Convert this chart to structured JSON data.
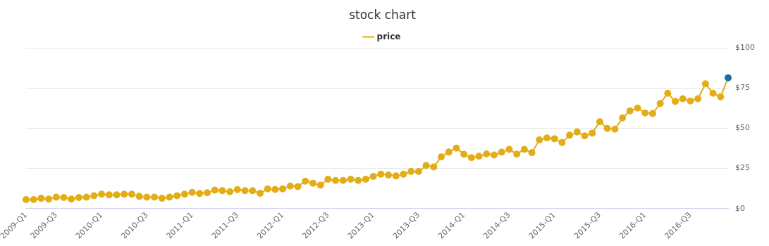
{
  "chart_data": {
    "type": "line",
    "title": "stock chart",
    "categories": [
      "2009-Q1",
      null,
      null,
      null,
      "2009-Q3",
      null,
      null,
      null,
      null,
      null,
      "2010-Q1",
      null,
      null,
      null,
      null,
      null,
      "2010-Q3",
      null,
      null,
      null,
      null,
      null,
      "2011-Q1",
      null,
      null,
      null,
      null,
      null,
      "2011-Q3",
      null,
      null,
      null,
      null,
      null,
      "2012-Q1",
      null,
      null,
      null,
      null,
      null,
      "2012-Q3",
      null,
      null,
      null,
      null,
      null,
      "2013-Q1",
      null,
      null,
      null,
      null,
      null,
      "2013-Q3",
      null,
      null,
      null,
      null,
      null,
      "2014-Q1",
      null,
      null,
      null,
      null,
      null,
      "2014-Q3",
      null,
      null,
      null,
      null,
      null,
      "2015-Q1",
      null,
      null,
      null,
      null,
      null,
      "2015-Q3",
      null,
      null,
      null,
      null,
      null,
      "2016-Q1",
      null,
      null,
      null,
      null,
      null,
      "2016-Q3",
      null,
      null,
      null,
      null,
      null
    ],
    "series": [
      {
        "name": "price",
        "color": "#e3ad17",
        "colors": [
          "#e3ad17",
          "#e3ad17",
          "#e3ad17",
          "#e3ad17",
          "#e3ad17",
          "#e3ad17",
          "#e3ad17",
          "#e3ad17",
          "#e3ad17",
          "#e3ad17",
          "#e3ad17",
          "#e3ad17",
          "#e3ad17",
          "#e3ad17",
          "#e3ad17",
          "#e3ad17",
          "#e3ad17",
          "#e3ad17",
          "#e3ad17",
          "#e3ad17",
          "#e3ad17",
          "#e3ad17",
          "#e3ad17",
          "#e3ad17",
          "#e3ad17",
          "#e3ad17",
          "#e3ad17",
          "#e3ad17",
          "#e3ad17",
          "#e3ad17",
          "#e3ad17",
          "#e3ad17",
          "#e3ad17",
          "#e3ad17",
          "#e3ad17",
          "#e3ad17",
          "#e3ad17",
          "#e3ad17",
          "#e3ad17",
          "#e3ad17",
          "#e3ad17",
          "#e3ad17",
          "#e3ad17",
          "#e3ad17",
          "#e3ad17",
          "#e3ad17",
          "#e3ad17",
          "#e3ad17",
          "#e3ad17",
          "#e3ad17",
          "#e3ad17",
          "#e3ad17",
          "#e3ad17",
          "#e3ad17",
          "#e3ad17",
          "#e3ad17",
          "#e3ad17",
          "#e3ad17",
          "#e3ad17",
          "#e3ad17",
          "#e3ad17",
          "#e3ad17",
          "#e3ad17",
          "#e3ad17",
          "#e3ad17",
          "#e3ad17",
          "#e3ad17",
          "#e3ad17",
          "#e3ad17",
          "#e3ad17",
          "#e3ad17",
          "#e3ad17",
          "#e3ad17",
          "#e3ad17",
          "#e3ad17",
          "#e3ad17",
          "#e3ad17",
          "#e3ad17",
          "#e3ad17",
          "#e3ad17",
          "#e3ad17",
          "#e3ad17",
          "#e3ad17",
          "#e3ad17",
          "#e3ad17",
          "#e3ad17",
          "#e3ad17",
          "#e3ad17",
          "#e3ad17",
          "#e3ad17",
          "#e3ad17",
          "#e3ad17",
          "#e3ad17",
          "#1a6fa3"
        ],
        "values": [
          5.6,
          5.6,
          6.4,
          5.9,
          7.1,
          6.9,
          5.9,
          6.9,
          7.1,
          8.0,
          9.0,
          8.5,
          8.5,
          9.0,
          9.0,
          7.6,
          7.1,
          7.1,
          6.4,
          7.1,
          8.0,
          9.0,
          10.1,
          9.4,
          9.8,
          11.5,
          11.2,
          10.5,
          11.8,
          11.1,
          11.1,
          9.5,
          12.3,
          11.9,
          12.3,
          14.0,
          13.7,
          17.1,
          15.8,
          14.6,
          18.3,
          17.5,
          17.5,
          18.3,
          17.5,
          18.3,
          20.0,
          21.4,
          20.9,
          20.3,
          21.4,
          23.1,
          23.1,
          26.8,
          25.9,
          32.2,
          35.2,
          37.7,
          33.8,
          31.7,
          32.6,
          34.0,
          33.4,
          35.1,
          36.9,
          33.9,
          36.9,
          34.8,
          42.8,
          44.0,
          43.5,
          41.1,
          45.7,
          47.7,
          45.3,
          47.0,
          54.1,
          49.9,
          49.5,
          56.5,
          60.9,
          62.6,
          59.6,
          59.2,
          65.5,
          71.8,
          66.8,
          68.4,
          67.0,
          68.4,
          77.7,
          71.8,
          69.6,
          81.5
        ]
      }
    ],
    "ylim": [
      0,
      100
    ],
    "yticks": [
      {
        "value": 0,
        "label": "$0"
      },
      {
        "value": 25,
        "label": "$25"
      },
      {
        "value": 50,
        "label": "$50"
      },
      {
        "value": 75,
        "label": "$75"
      },
      {
        "value": 100,
        "label": "$100"
      }
    ],
    "grid": "y",
    "legend": "top",
    "marker": "circle",
    "line_style": "solid"
  }
}
